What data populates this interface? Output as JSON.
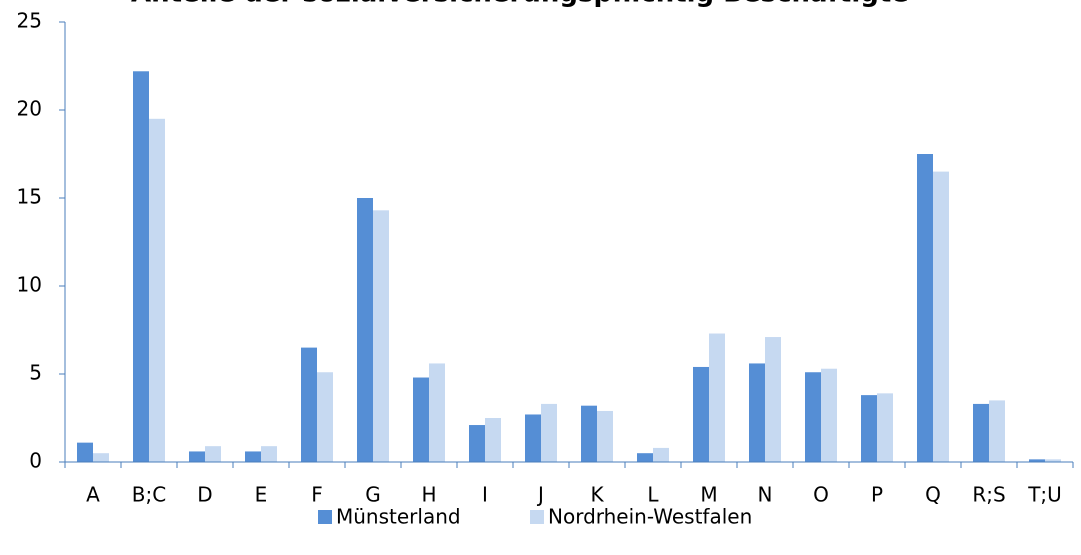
{
  "chart_data": {
    "type": "bar",
    "title": "Anteile der sozialversicherungspflichtig Beschäftigte",
    "categories": [
      "A",
      "B;C",
      "D",
      "E",
      "F",
      "G",
      "H",
      "I",
      "J",
      "K",
      "L",
      "M",
      "N",
      "O",
      "P",
      "Q",
      "R;S",
      "T;U"
    ],
    "series": [
      {
        "name": "Münsterland",
        "color": "#558ed5",
        "values": [
          1.1,
          22.2,
          0.6,
          0.6,
          6.5,
          15.0,
          4.8,
          2.1,
          2.7,
          3.2,
          0.5,
          5.4,
          5.6,
          5.1,
          3.8,
          17.5,
          3.3,
          0.15
        ]
      },
      {
        "name": "Nordrhein-Westfalen",
        "color": "#c6d9f1",
        "values": [
          0.5,
          19.5,
          0.9,
          0.9,
          5.1,
          14.3,
          5.6,
          2.5,
          3.3,
          2.9,
          0.8,
          7.3,
          7.1,
          5.3,
          3.9,
          16.5,
          3.5,
          0.15
        ]
      }
    ],
    "ylim": [
      0,
      25
    ],
    "yticks": [
      0,
      5,
      10,
      15,
      20,
      25
    ],
    "grid": false,
    "legend": "bottom"
  }
}
